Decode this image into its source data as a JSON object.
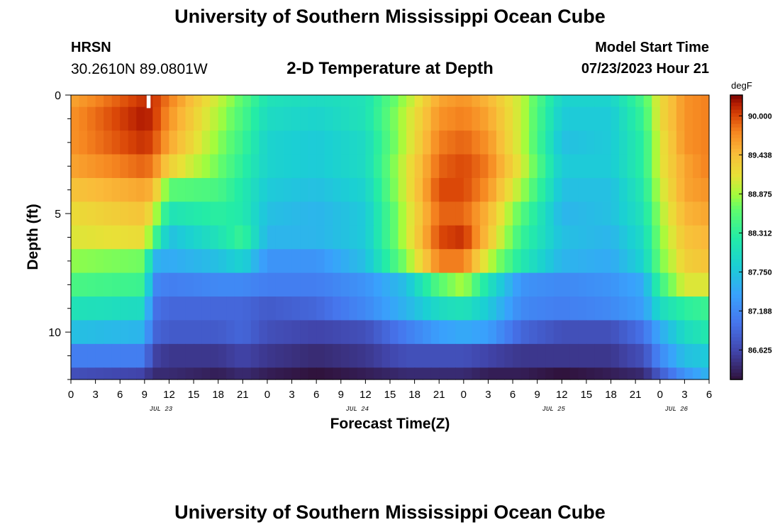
{
  "header": {
    "title": "University of Southern Mississippi Ocean Cube",
    "station": "HRSN",
    "coords": "30.2610N  89.0801W",
    "plot_title": "2-D Temperature at Depth",
    "model_start_label": "Model Start Time",
    "model_start_value": "07/23/2023 Hour 21"
  },
  "footer": {
    "title": "University of Southern Mississippi Ocean Cube"
  },
  "chart_data": {
    "type": "heatmap",
    "title": "2-D Temperature at Depth",
    "xlabel": "Forecast Time(Z)",
    "ylabel": "Depth (ft)",
    "x_range_hours": [
      0,
      78
    ],
    "x_tick_step_hours": 3,
    "x_tick_labels": [
      "0",
      "3",
      "6",
      "9",
      "12",
      "15",
      "18",
      "21",
      "0",
      "3",
      "6",
      "9",
      "12",
      "15",
      "18",
      "21",
      "0",
      "3",
      "6",
      "9",
      "12",
      "15",
      "18",
      "21",
      "0",
      "3",
      "6"
    ],
    "date_labels": [
      {
        "label": "JUL 23",
        "hour": 11
      },
      {
        "label": "JUL 24",
        "hour": 35
      },
      {
        "label": "JUL 25",
        "hour": 59
      },
      {
        "label": "JUL 26",
        "hour": 74
      }
    ],
    "y_range_ft": [
      0,
      12
    ],
    "y_tick_labels": [
      "0",
      "5",
      "10"
    ],
    "y_tick_values": [
      0,
      5,
      10
    ],
    "y_minor_step": 1,
    "depth_layers_ft": [
      0,
      1,
      2,
      3,
      4,
      5,
      6,
      7,
      8,
      9,
      10,
      11
    ],
    "colorbar": {
      "unit": "degF",
      "min": 86.2,
      "max": 90.3,
      "tick_values": [
        90.0,
        89.438,
        88.875,
        88.312,
        87.75,
        87.188,
        86.625
      ],
      "tick_labels": [
        "90.000",
        "89.438",
        "88.875",
        "88.312",
        "87.750",
        "87.188",
        "86.625"
      ]
    },
    "temperature_keyframes": {
      "hours": [
        0,
        9,
        10,
        12,
        18,
        21,
        24,
        30,
        36,
        41,
        45,
        48,
        51,
        55,
        60,
        66,
        70,
        72,
        75,
        78
      ],
      "rows": [
        [
          89.6,
          90.1,
          90.1,
          89.8,
          89.0,
          88.6,
          88.1,
          88.0,
          88.1,
          88.9,
          89.6,
          89.7,
          89.5,
          89.0,
          87.9,
          87.9,
          88.5,
          89.2,
          89.7,
          89.8
        ],
        [
          89.7,
          90.2,
          90.1,
          89.7,
          88.9,
          88.5,
          88.0,
          87.9,
          88.1,
          89.0,
          89.7,
          89.8,
          89.6,
          89.0,
          87.8,
          87.8,
          88.4,
          89.2,
          89.7,
          89.8
        ],
        [
          89.7,
          90.1,
          90.0,
          89.6,
          88.8,
          88.4,
          87.9,
          87.8,
          88.0,
          89.0,
          89.8,
          89.9,
          89.7,
          89.0,
          87.7,
          87.8,
          88.3,
          89.1,
          89.7,
          89.8
        ],
        [
          89.6,
          89.9,
          89.8,
          89.3,
          88.7,
          88.3,
          87.9,
          87.8,
          88.0,
          89.1,
          89.9,
          90.0,
          89.8,
          89.1,
          87.8,
          87.8,
          88.3,
          89.1,
          89.6,
          89.8
        ],
        [
          89.4,
          89.6,
          89.5,
          88.6,
          88.5,
          88.2,
          87.8,
          87.7,
          87.9,
          89.1,
          90.0,
          90.0,
          89.7,
          88.9,
          87.7,
          87.7,
          88.2,
          89.0,
          89.6,
          89.7
        ],
        [
          89.2,
          89.4,
          89.1,
          88.1,
          88.3,
          88.2,
          87.7,
          87.6,
          87.8,
          89.0,
          89.9,
          89.9,
          89.5,
          88.6,
          87.6,
          87.7,
          88.1,
          88.9,
          89.5,
          89.6
        ],
        [
          89.1,
          89.2,
          88.6,
          87.7,
          88.1,
          88.4,
          87.6,
          87.6,
          87.8,
          89.0,
          90.0,
          90.1,
          89.4,
          88.4,
          87.7,
          87.6,
          88.0,
          88.8,
          89.4,
          89.5
        ],
        [
          88.8,
          88.7,
          87.6,
          87.5,
          87.7,
          87.9,
          87.3,
          87.3,
          87.7,
          88.8,
          89.8,
          89.8,
          89.0,
          88.2,
          87.6,
          87.5,
          87.9,
          88.7,
          89.3,
          89.4
        ],
        [
          88.5,
          88.4,
          87.2,
          87.1,
          87.2,
          87.2,
          87.1,
          87.1,
          87.3,
          87.7,
          88.6,
          88.9,
          88.1,
          87.3,
          87.2,
          87.3,
          87.5,
          88.4,
          89.1,
          89.1
        ],
        [
          88.1,
          88.0,
          87.0,
          86.9,
          86.9,
          86.9,
          86.8,
          86.9,
          87.2,
          87.6,
          88.0,
          88.1,
          87.8,
          87.2,
          87.1,
          87.2,
          87.4,
          88.0,
          88.3,
          88.4
        ],
        [
          87.7,
          87.6,
          86.9,
          86.8,
          86.8,
          86.9,
          86.7,
          86.6,
          86.7,
          87.1,
          87.4,
          87.5,
          87.4,
          86.9,
          86.7,
          86.7,
          87.0,
          87.5,
          88.0,
          88.2
        ],
        [
          87.1,
          87.1,
          86.6,
          86.5,
          86.5,
          86.6,
          86.5,
          86.4,
          86.5,
          86.7,
          86.7,
          86.7,
          86.6,
          86.5,
          86.5,
          86.5,
          86.7,
          87.2,
          87.7,
          87.8
        ],
        [
          86.7,
          86.6,
          86.4,
          86.4,
          86.3,
          86.4,
          86.3,
          86.2,
          86.3,
          86.4,
          86.4,
          86.4,
          86.3,
          86.3,
          86.2,
          86.3,
          86.4,
          86.8,
          87.3,
          87.6
        ]
      ]
    },
    "missing_cells": [
      {
        "hour": 9,
        "depth_ft": 0
      }
    ]
  }
}
